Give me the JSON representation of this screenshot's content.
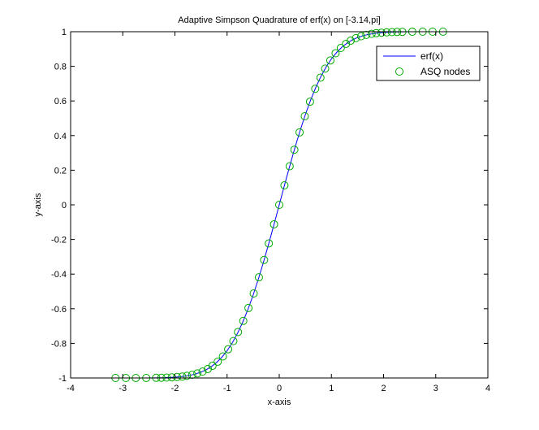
{
  "chart_data": {
    "type": "line",
    "title": "Adaptive Simpson Quadrature of erf(x) on [-3.14,pi]",
    "xlabel": "x-axis",
    "ylabel": "y-axis",
    "xlim": [
      -4,
      4
    ],
    "ylim": [
      -1,
      1
    ],
    "xticks": [
      -4,
      -3,
      -2,
      -1,
      0,
      1,
      2,
      3,
      4
    ],
    "yticks": [
      -1,
      -0.8,
      -0.6,
      -0.4,
      -0.2,
      0,
      0.2,
      0.4,
      0.6,
      0.8,
      1
    ],
    "xtick_labels": [
      "-4",
      "-3",
      "-2",
      "-1",
      "0",
      "1",
      "2",
      "3",
      "4"
    ],
    "ytick_labels": [
      "-1",
      "-0.8",
      "-0.6",
      "-0.4",
      "-0.2",
      "0",
      "0.2",
      "0.4",
      "0.6",
      "0.8",
      "1"
    ],
    "grid": false,
    "legend_position": "top-right",
    "series": [
      {
        "name": "erf(x)",
        "style": "line",
        "color": "#0000ff",
        "x": [
          -3.14,
          -3.0,
          -2.8,
          -2.6,
          -2.4,
          -2.2,
          -2.0,
          -1.9,
          -1.8,
          -1.7,
          -1.6,
          -1.5,
          -1.4,
          -1.3,
          -1.2,
          -1.1,
          -1.0,
          -0.9,
          -0.8,
          -0.7,
          -0.6,
          -0.5,
          -0.4,
          -0.3,
          -0.2,
          -0.1,
          0.0,
          0.1,
          0.2,
          0.3,
          0.4,
          0.5,
          0.6,
          0.7,
          0.8,
          0.9,
          1.0,
          1.1,
          1.2,
          1.3,
          1.4,
          1.5,
          1.6,
          1.7,
          1.8,
          1.9,
          2.0,
          2.2,
          2.4,
          2.6,
          2.8,
          3.0,
          3.14
        ],
        "y": [
          -1.0,
          -1.0,
          -0.9999,
          -0.9998,
          -0.9993,
          -0.9981,
          -0.9953,
          -0.9928,
          -0.9891,
          -0.9838,
          -0.9763,
          -0.9661,
          -0.9523,
          -0.934,
          -0.9103,
          -0.8802,
          -0.8427,
          -0.7969,
          -0.7421,
          -0.6778,
          -0.6039,
          -0.5205,
          -0.4284,
          -0.3286,
          -0.2227,
          -0.1125,
          0.0,
          0.1125,
          0.2227,
          0.3286,
          0.4284,
          0.5205,
          0.6039,
          0.6778,
          0.7421,
          0.7969,
          0.8427,
          0.8802,
          0.9103,
          0.934,
          0.9523,
          0.9661,
          0.9763,
          0.9838,
          0.9891,
          0.9928,
          0.9953,
          0.9981,
          0.9993,
          0.9998,
          0.9999,
          1.0,
          1.0
        ]
      },
      {
        "name": "ASQ nodes",
        "style": "markers",
        "marker": "circle",
        "color": "#00aa00",
        "x": [
          -3.14,
          -2.94,
          -2.75,
          -2.55,
          -2.36,
          -2.26,
          -2.16,
          -2.06,
          -1.96,
          -1.86,
          -1.77,
          -1.67,
          -1.57,
          -1.47,
          -1.37,
          -1.28,
          -1.18,
          -1.08,
          -0.98,
          -0.88,
          -0.79,
          -0.69,
          -0.59,
          -0.49,
          -0.39,
          -0.29,
          -0.2,
          -0.1,
          0.0,
          0.1,
          0.2,
          0.29,
          0.39,
          0.49,
          0.59,
          0.69,
          0.79,
          0.88,
          0.98,
          1.08,
          1.18,
          1.28,
          1.37,
          1.47,
          1.57,
          1.67,
          1.77,
          1.86,
          1.96,
          2.06,
          2.16,
          2.26,
          2.36,
          2.55,
          2.75,
          2.94,
          3.14
        ],
        "y": [
          -1.0,
          -1.0,
          -0.9999,
          -0.9997,
          -0.9991,
          -0.9986,
          -0.9977,
          -0.9964,
          -0.9944,
          -0.9915,
          -0.9876,
          -0.9818,
          -0.9736,
          -0.963,
          -0.9481,
          -0.9298,
          -0.906,
          -0.8755,
          -0.8342,
          -0.787,
          -0.7346,
          -0.6701,
          -0.5958,
          -0.5117,
          -0.4187,
          -0.3182,
          -0.2227,
          -0.1125,
          0.0,
          0.1125,
          0.2227,
          0.3182,
          0.4187,
          0.5117,
          0.5958,
          0.6701,
          0.7346,
          0.787,
          0.8342,
          0.8755,
          0.906,
          0.9298,
          0.9481,
          0.963,
          0.9736,
          0.9818,
          0.9876,
          0.9915,
          0.9944,
          0.9964,
          0.9977,
          0.9986,
          0.9991,
          0.9997,
          0.9999,
          1.0,
          1.0
        ]
      }
    ]
  }
}
